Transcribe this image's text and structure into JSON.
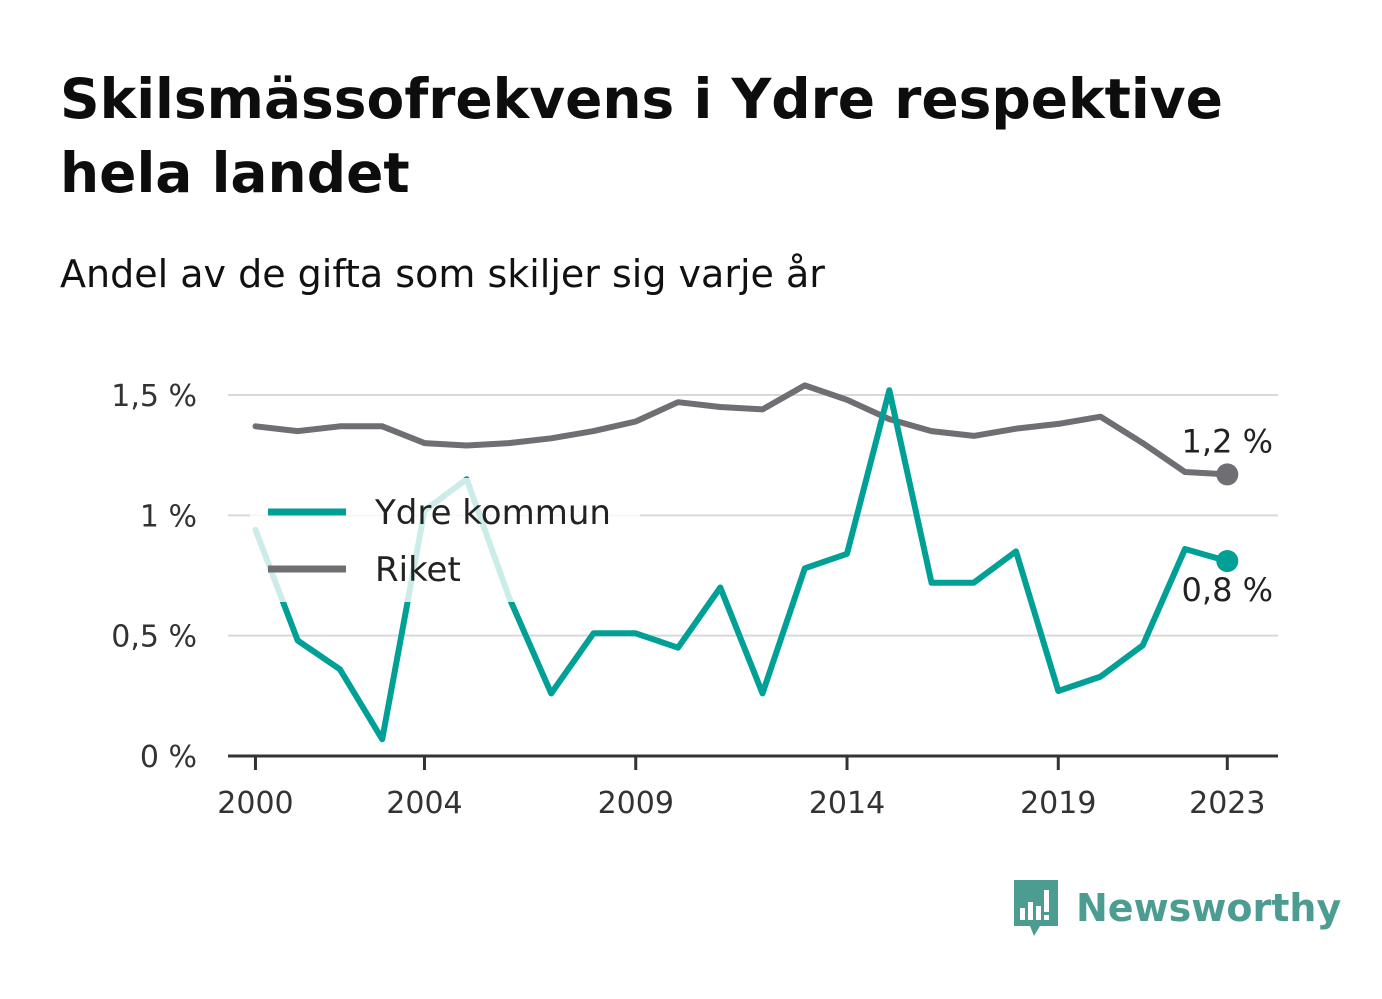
{
  "header": {
    "title": "Skilsmässofrekvens i Ydre respektive hela landet",
    "subtitle": "Andel av de gifta som skiljer sig varje år"
  },
  "brand": {
    "name": "Newsworthy",
    "icon": "bar-chart-speech-bubble-icon",
    "color": "#4c9c92"
  },
  "chart_data": {
    "type": "line",
    "title": "Skilsmässofrekvens i Ydre respektive hela landet",
    "subtitle": "Andel av de gifta som skiljer sig varje år",
    "x": [
      2000,
      2001,
      2002,
      2003,
      2004,
      2005,
      2006,
      2007,
      2008,
      2009,
      2010,
      2011,
      2012,
      2013,
      2014,
      2015,
      2016,
      2017,
      2018,
      2019,
      2020,
      2021,
      2022,
      2023
    ],
    "xlim": [
      1999.35,
      2024.2
    ],
    "xticks": [
      2000,
      2004,
      2009,
      2014,
      2019,
      2023
    ],
    "xtick_labels": [
      "2000",
      "2004",
      "2009",
      "2014",
      "2019",
      "2023"
    ],
    "ylim": [
      0,
      1.5
    ],
    "yticks": [
      0,
      0.5,
      1,
      1.5
    ],
    "ytick_labels": [
      "0 %",
      "0,5 %",
      "1 %",
      "1,5 %"
    ],
    "grid": true,
    "legend": "left-center",
    "series": [
      {
        "name": "Ydre kommun",
        "color": "#00a096",
        "end_label": "0,8 %",
        "values": [
          0.94,
          0.48,
          0.36,
          0.07,
          1.02,
          1.15,
          0.66,
          0.26,
          0.51,
          0.51,
          0.45,
          0.7,
          0.26,
          0.78,
          0.84,
          1.52,
          0.72,
          0.72,
          0.85,
          0.27,
          0.33,
          0.46,
          0.86,
          0.81
        ]
      },
      {
        "name": "Riket",
        "color": "#6e6e73",
        "end_label": "1,2 %",
        "values": [
          1.37,
          1.35,
          1.37,
          1.37,
          1.3,
          1.29,
          1.3,
          1.32,
          1.35,
          1.39,
          1.47,
          1.45,
          1.44,
          1.54,
          1.48,
          1.4,
          1.35,
          1.33,
          1.36,
          1.38,
          1.41,
          1.3,
          1.18,
          1.17
        ]
      }
    ]
  }
}
